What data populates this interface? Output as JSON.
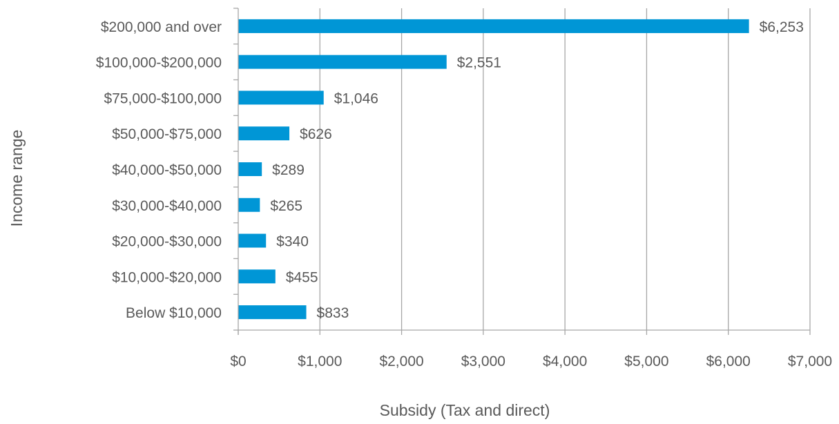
{
  "chart_data": {
    "type": "bar",
    "orientation": "horizontal",
    "title": "",
    "xlabel": "Subsidy (Tax and direct)",
    "ylabel": "Income range",
    "categories": [
      "$200,000 and over",
      "$100,000-$200,000",
      "$75,000-$100,000",
      "$50,000-$75,000",
      "$40,000-$50,000",
      "$30,000-$40,000",
      "$20,000-$30,000",
      "$10,000-$20,000",
      "Below $10,000"
    ],
    "values": [
      6253,
      2551,
      1046,
      626,
      289,
      265,
      340,
      455,
      833
    ],
    "data_labels": [
      "$6,253",
      "$2,551",
      "$1,046",
      "$626",
      "$289",
      "$265",
      "$340",
      "$455",
      "$833"
    ],
    "xlim": [
      0,
      7000
    ],
    "xticks": [
      0,
      1000,
      2000,
      3000,
      4000,
      5000,
      6000,
      7000
    ],
    "xtick_labels": [
      "$0",
      "$1,000",
      "$2,000",
      "$3,000",
      "$4,000",
      "$5,000",
      "$6,000",
      "$7,000"
    ],
    "grid": "vertical",
    "legend": "none",
    "colors": {
      "bar": "#0096d6",
      "grid": "#a6a6a6",
      "text": "#595959"
    }
  }
}
